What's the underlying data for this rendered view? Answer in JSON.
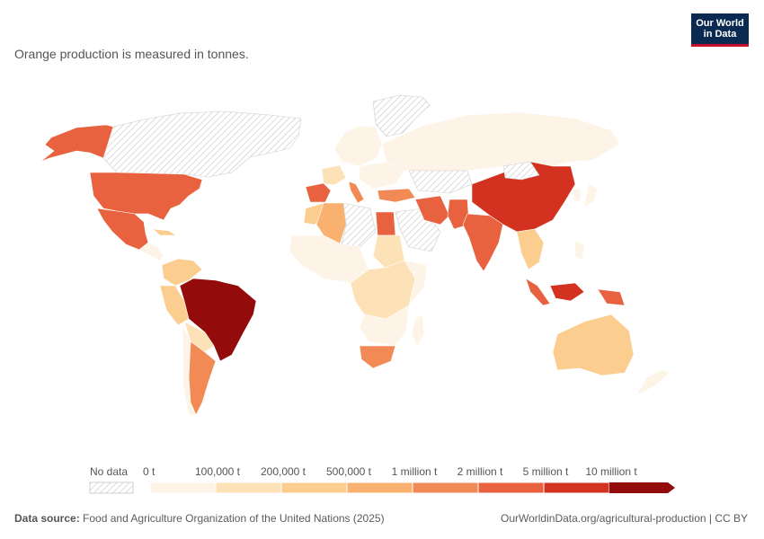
{
  "subtitle": "Orange production is measured in tonnes.",
  "logo": {
    "line1": "Our World",
    "line2": "in Data"
  },
  "legend": {
    "no_data_label": "No data",
    "bins": [
      {
        "label": "0 t",
        "color": "#fdf3e6"
      },
      {
        "label": "100,000 t",
        "color": "#fde2b8"
      },
      {
        "label": "200,000 t",
        "color": "#fbcd8f"
      },
      {
        "label": "500,000 t",
        "color": "#f8b16e"
      },
      {
        "label": "1 million t",
        "color": "#f28a55"
      },
      {
        "label": "2 million t",
        "color": "#e8623f"
      },
      {
        "label": "5 million t",
        "color": "#d2321f"
      },
      {
        "label": "10 million t",
        "color": "#930b0b"
      }
    ]
  },
  "colors": {
    "very_low": "#fdf3e6",
    "low": "#fde2b8",
    "mid_low": "#fbcd8f",
    "mid": "#f8b16e",
    "mid_high": "#f28a55",
    "high": "#e8623f",
    "very_high": "#d2321f",
    "top": "#930b0b",
    "no_data": "#e6e6e6"
  },
  "footer": {
    "source_label": "Data source:",
    "source_text": "Food and Agriculture Organization of the United Nations (2025)",
    "right_text": "OurWorldinData.org/agricultural-production | CC BY"
  }
}
